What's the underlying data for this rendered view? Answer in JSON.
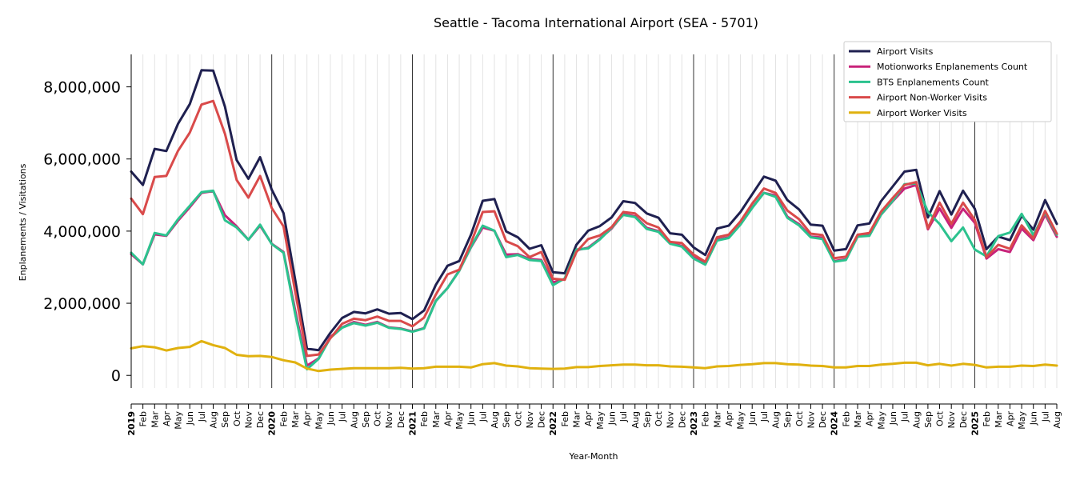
{
  "chart_data": {
    "type": "line",
    "title": "Seattle - Tacoma International Airport (SEA - 5701)",
    "xlabel": "Year-Month",
    "ylabel": "Enplanements / Visitations",
    "ylim": [
      -350000,
      8900000
    ],
    "yticks": [
      0,
      2000000,
      4000000,
      6000000,
      8000000
    ],
    "ytick_labels": [
      "0",
      "2,000,000",
      "4,000,000",
      "6,000,000",
      "8,000,000"
    ],
    "grid": "vertical monthly gridlines; black lines at each January",
    "legend_position": "top-right",
    "x": [
      "2019",
      "Feb",
      "Mar",
      "Apr",
      "May",
      "Jun",
      "Jul",
      "Aug",
      "Sep",
      "Oct",
      "Nov",
      "Dec",
      "2020",
      "Feb",
      "Mar",
      "Apr",
      "May",
      "Jun",
      "Jul",
      "Aug",
      "Sep",
      "Oct",
      "Nov",
      "Dec",
      "2021",
      "Feb",
      "Mar",
      "Apr",
      "May",
      "Jun",
      "Jul",
      "Aug",
      "Sep",
      "Oct",
      "Nov",
      "Dec",
      "2022",
      "Feb",
      "Mar",
      "Apr",
      "May",
      "Jun",
      "Jul",
      "Aug",
      "Sep",
      "Oct",
      "Nov",
      "Dec",
      "2023",
      "Feb",
      "Mar",
      "Apr",
      "May",
      "Jun",
      "Jul",
      "Aug",
      "Sep",
      "Oct",
      "Nov",
      "Dec",
      "2024",
      "Feb",
      "Mar",
      "Apr",
      "May",
      "Jun",
      "Jul",
      "Aug",
      "Sep",
      "Oct",
      "Nov",
      "Dec",
      "2025",
      "Feb",
      "Mar",
      "Apr",
      "May",
      "Jun",
      "Jul",
      "Aug"
    ],
    "series": [
      {
        "name": "Airport Visits",
        "color": "#1f2050",
        "values": [
          5650000,
          5280000,
          6280000,
          6220000,
          6980000,
          7520000,
          8460000,
          8450000,
          7450000,
          5970000,
          5450000,
          6050000,
          5150000,
          4500000,
          2650000,
          740000,
          700000,
          1180000,
          1590000,
          1760000,
          1720000,
          1830000,
          1710000,
          1730000,
          1560000,
          1800000,
          2510000,
          3040000,
          3170000,
          3900000,
          4840000,
          4890000,
          3990000,
          3830000,
          3510000,
          3610000,
          2860000,
          2830000,
          3620000,
          4010000,
          4140000,
          4380000,
          4830000,
          4780000,
          4490000,
          4370000,
          3940000,
          3900000,
          3550000,
          3340000,
          4070000,
          4150000,
          4530000,
          5020000,
          5510000,
          5400000,
          4860000,
          4600000,
          4180000,
          4150000,
          3460000,
          3500000,
          4160000,
          4210000,
          4830000,
          5240000,
          5650000,
          5700000,
          4380000,
          5110000,
          4460000,
          5120000,
          4620000,
          3500000,
          3850000,
          3750000,
          4430000,
          4040000,
          4860000,
          4200000
        ]
      },
      {
        "name": "Motionworks Enplanements Count",
        "color": "#c8237a",
        "values": [
          3360000,
          3080000,
          3910000,
          3870000,
          4290000,
          4660000,
          5060000,
          5110000,
          4440000,
          4130000,
          3760000,
          4150000,
          3650000,
          3420000,
          1800000,
          270000,
          470000,
          1070000,
          1330000,
          1480000,
          1400000,
          1480000,
          1330000,
          1300000,
          1220000,
          1310000,
          2070000,
          2420000,
          2910000,
          3550000,
          4100000,
          4010000,
          3350000,
          3360000,
          3230000,
          3200000,
          2580000,
          2670000,
          3470000,
          3540000,
          3790000,
          4070000,
          4470000,
          4410000,
          4090000,
          4000000,
          3680000,
          3590000,
          3270000,
          3110000,
          3760000,
          3830000,
          4190000,
          4650000,
          5060000,
          4990000,
          4400000,
          4190000,
          3850000,
          3820000,
          3170000,
          3220000,
          3850000,
          3890000,
          4460000,
          4830000,
          5180000,
          5280000,
          4050000,
          4630000,
          4090000,
          4620000,
          4230000,
          3240000,
          3500000,
          3420000,
          4070000,
          3750000,
          4460000,
          3840000
        ]
      },
      {
        "name": "BTS Enplanements Count",
        "color": "#2cc28e",
        "values": [
          3400000,
          3080000,
          3950000,
          3880000,
          4330000,
          4700000,
          5080000,
          5120000,
          4300000,
          4100000,
          3760000,
          4180000,
          3640000,
          3400000,
          1700000,
          170000,
          460000,
          1040000,
          1320000,
          1450000,
          1380000,
          1460000,
          1320000,
          1290000,
          1210000,
          1300000,
          2060000,
          2420000,
          2900000,
          3560000,
          4150000,
          4010000,
          3280000,
          3340000,
          3200000,
          3170000,
          2500000,
          2690000,
          3490000,
          3520000,
          3770000,
          4090000,
          4450000,
          4390000,
          4060000,
          3980000,
          3650000,
          3570000,
          3240000,
          3070000,
          3740000,
          3810000,
          4180000,
          4640000,
          5060000,
          4950000,
          4370000,
          4160000,
          3830000,
          3780000,
          3150000,
          3200000,
          3850000,
          3870000,
          4460000,
          4840000,
          5300000,
          5320000,
          4530000,
          4200000,
          3720000,
          4100000,
          3490000,
          3300000,
          3860000,
          3960000,
          4480000,
          3890000,
          4520000,
          3900000
        ]
      },
      {
        "name": "Airport Non-Worker Visits",
        "color": "#d94a4a",
        "values": [
          4900000,
          4470000,
          5500000,
          5530000,
          6230000,
          6730000,
          7510000,
          7610000,
          6700000,
          5420000,
          4930000,
          5530000,
          4640000,
          4130000,
          2320000,
          540000,
          580000,
          1030000,
          1430000,
          1570000,
          1530000,
          1630000,
          1510000,
          1510000,
          1360000,
          1600000,
          2240000,
          2800000,
          2930000,
          3670000,
          4530000,
          4550000,
          3720000,
          3580000,
          3280000,
          3420000,
          2680000,
          2650000,
          3420000,
          3780000,
          3880000,
          4110000,
          4530000,
          4490000,
          4220000,
          4100000,
          3700000,
          3670000,
          3350000,
          3150000,
          3830000,
          3900000,
          4270000,
          4760000,
          5180000,
          5060000,
          4570000,
          4330000,
          3930000,
          3890000,
          3250000,
          3290000,
          3900000,
          3950000,
          4540000,
          4920000,
          5280000,
          5360000,
          4080000,
          4790000,
          4200000,
          4790000,
          4310000,
          3280000,
          3620000,
          3510000,
          4160000,
          3800000,
          4560000,
          3930000
        ]
      },
      {
        "name": "Airport Worker Visits",
        "color": "#e0b10f",
        "values": [
          750000,
          810000,
          780000,
          690000,
          760000,
          790000,
          950000,
          840000,
          760000,
          570000,
          530000,
          540000,
          510000,
          420000,
          360000,
          190000,
          120000,
          160000,
          180000,
          200000,
          200000,
          200000,
          200000,
          210000,
          190000,
          200000,
          240000,
          240000,
          240000,
          220000,
          310000,
          340000,
          270000,
          250000,
          200000,
          190000,
          180000,
          190000,
          230000,
          230000,
          260000,
          280000,
          300000,
          300000,
          280000,
          280000,
          250000,
          240000,
          220000,
          200000,
          250000,
          260000,
          290000,
          310000,
          340000,
          340000,
          310000,
          300000,
          270000,
          260000,
          220000,
          220000,
          260000,
          260000,
          300000,
          320000,
          350000,
          350000,
          280000,
          320000,
          270000,
          320000,
          290000,
          220000,
          240000,
          240000,
          270000,
          260000,
          300000,
          270000
        ]
      }
    ]
  }
}
